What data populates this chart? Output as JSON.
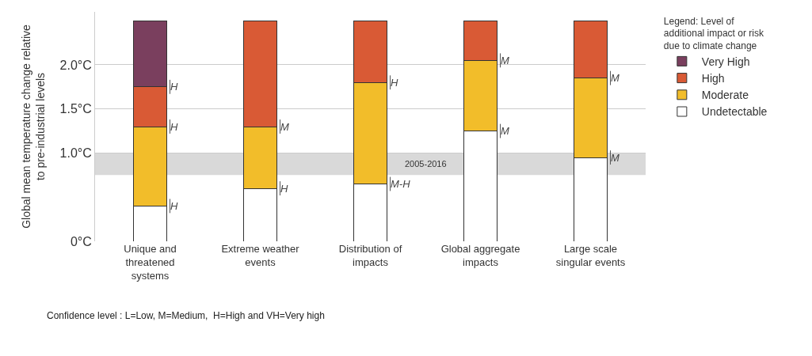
{
  "chart_data": {
    "type": "bar",
    "stacked": true,
    "ylabel": "Global mean temperature change relative to pre-industrial levels",
    "categories": [
      "Unique and threatened systems",
      "Extreme weather events",
      "Distribution of impacts",
      "Global aggregate impacts",
      "Large scale singular events"
    ],
    "series": [
      {
        "name": "Undetectable",
        "color": "#ffffff",
        "values": [
          0.4,
          0.6,
          0.65,
          1.25,
          0.95
        ]
      },
      {
        "name": "Moderate",
        "color": "#f2bd2a",
        "values": [
          0.9,
          0.7,
          1.15,
          0.8,
          0.9
        ]
      },
      {
        "name": "High",
        "color": "#d95a35",
        "values": [
          0.45,
          1.2,
          0.7,
          0.45,
          0.65
        ]
      },
      {
        "name": "Very High",
        "color": "#7a3f5e",
        "values": [
          0.75,
          0,
          0,
          0,
          0
        ]
      }
    ],
    "ylim": [
      0,
      2.6
    ],
    "yticks": [
      {
        "value": 0,
        "label": "0°C"
      },
      {
        "value": 1,
        "label": "1.0°C"
      },
      {
        "value": 1.5,
        "label": "1.5°C"
      },
      {
        "value": 2,
        "label": "2.0°C"
      }
    ],
    "grid": "y",
    "legend": "right",
    "legend_title": "Legend: Level of additional impact or risk due to climate change",
    "bands": [
      {
        "axis": "y",
        "from": 0.75,
        "to": 1.0,
        "label": "2005-2016",
        "color": "#d9d9d9"
      }
    ],
    "annotations": [
      "Confidence level : L=Low, M=Medium,  H=High and VH=Very high",
      {
        "text": "H",
        "x": "Unique and threatened systems",
        "y": 0.4
      },
      {
        "text": "H",
        "x": "Unique and threatened systems",
        "y": 1.3
      },
      {
        "text": "H",
        "x": "Unique and threatened systems",
        "y": 1.75
      },
      {
        "text": "H",
        "x": "Extreme weather events",
        "y": 0.6
      },
      {
        "text": "M",
        "x": "Extreme weather events",
        "y": 1.3
      },
      {
        "text": "M-H",
        "x": "Distribution of impacts",
        "y": 0.65
      },
      {
        "text": "H",
        "x": "Distribution of impacts",
        "y": 1.8
      },
      {
        "text": "M",
        "x": "Global aggregate impacts",
        "y": 1.25
      },
      {
        "text": "M",
        "x": "Global aggregate impacts",
        "y": 2.05
      },
      {
        "text": "M",
        "x": "Large scale singular events",
        "y": 0.95
      },
      {
        "text": "M",
        "x": "Large scale singular events",
        "y": 1.85
      }
    ]
  }
}
